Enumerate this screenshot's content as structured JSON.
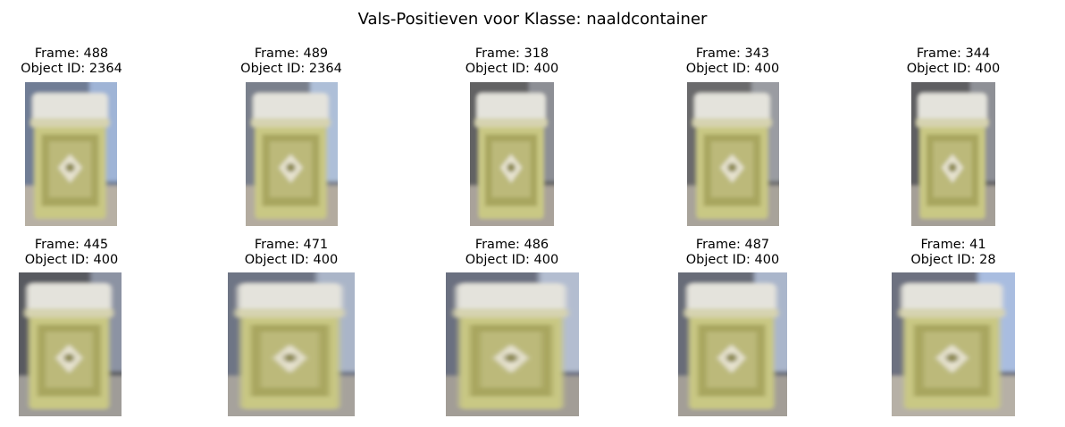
{
  "title": "Vals-Positieven voor Klasse: naaldcontainer",
  "frames": [
    {
      "frame_label": "Frame: 488",
      "object_label": "Object ID: 2364",
      "image": "sharps-container-icon"
    },
    {
      "frame_label": "Frame: 489",
      "object_label": "Object ID: 2364",
      "image": "sharps-container-icon"
    },
    {
      "frame_label": "Frame: 318",
      "object_label": "Object ID: 400",
      "image": "sharps-container-icon"
    },
    {
      "frame_label": "Frame: 343",
      "object_label": "Object ID: 400",
      "image": "sharps-container-icon"
    },
    {
      "frame_label": "Frame: 344",
      "object_label": "Object ID: 400",
      "image": "sharps-container-icon"
    },
    {
      "frame_label": "Frame: 445",
      "object_label": "Object ID: 400",
      "image": "sharps-container-icon"
    },
    {
      "frame_label": "Frame: 471",
      "object_label": "Object ID: 400",
      "image": "sharps-container-icon"
    },
    {
      "frame_label": "Frame: 486",
      "object_label": "Object ID: 400",
      "image": "sharps-container-icon"
    },
    {
      "frame_label": "Frame: 487",
      "object_label": "Object ID: 400",
      "image": "sharps-container-icon"
    },
    {
      "frame_label": "Frame: 41",
      "object_label": "Object ID: 28",
      "image": "sharps-container-icon"
    }
  ]
}
